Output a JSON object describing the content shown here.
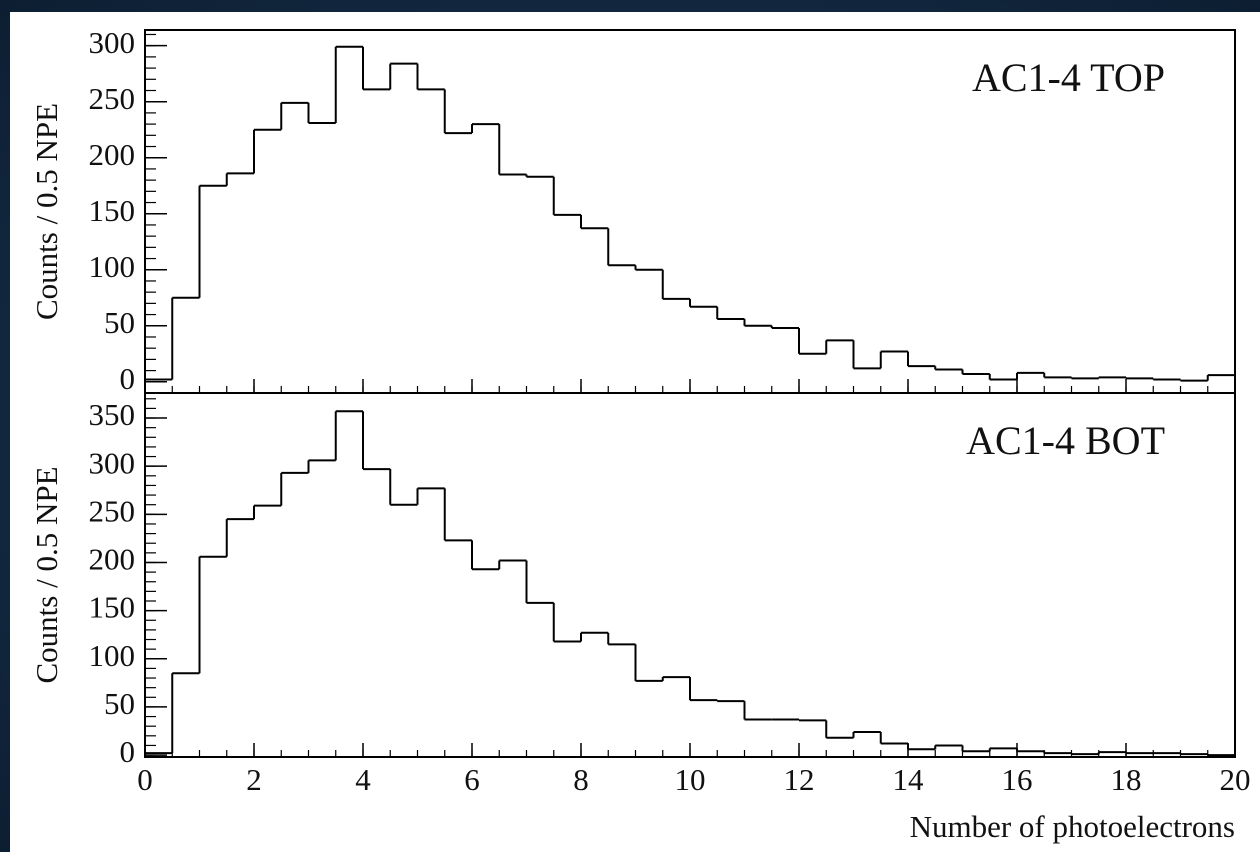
{
  "chart_data": [
    {
      "type": "histogram",
      "annotation": "AC1-4 TOP",
      "y_label": "Counts / 0.5 NPE",
      "color": "#000000",
      "bins": [
        0,
        0.5,
        1,
        1.5,
        2,
        2.5,
        3,
        3.5,
        4,
        4.5,
        5,
        5.5,
        6,
        6.5,
        7,
        7.5,
        8,
        8.5,
        9,
        9.5,
        10,
        10.5,
        11,
        11.5,
        12,
        12.5,
        13,
        13.5,
        14,
        14.5,
        15,
        15.5,
        16,
        16.5,
        17,
        17.5,
        18,
        18.5,
        19,
        19.5,
        20
      ],
      "values": [
        2,
        75,
        175,
        186,
        225,
        249,
        231,
        299,
        261,
        284,
        261,
        222,
        230,
        185,
        183,
        149,
        137,
        104,
        100,
        74,
        67,
        56,
        50,
        48,
        25,
        37,
        12,
        27,
        14,
        11,
        7,
        2,
        8,
        4,
        3,
        4,
        3,
        2,
        1,
        6
      ],
      "xlim": [
        0,
        20
      ],
      "ylim": [
        -10,
        314
      ],
      "yticks": [
        0,
        50,
        100,
        150,
        200,
        250,
        300
      ]
    },
    {
      "type": "histogram",
      "annotation": "AC1-4 BOT",
      "y_label": "Counts / 0.5 NPE",
      "x_label": "Number of photoelectrons",
      "color": "#000000",
      "bins": [
        0,
        0.5,
        1,
        1.5,
        2,
        2.5,
        3,
        3.5,
        4,
        4.5,
        5,
        5.5,
        6,
        6.5,
        7,
        7.5,
        8,
        8.5,
        9,
        9.5,
        10,
        10.5,
        11,
        11.5,
        12,
        12.5,
        13,
        13.5,
        14,
        14.5,
        15,
        15.5,
        16,
        16.5,
        17,
        17.5,
        18,
        18.5,
        19,
        19.5,
        20
      ],
      "values": [
        2,
        85,
        206,
        245,
        259,
        293,
        306,
        357,
        297,
        260,
        277,
        223,
        193,
        202,
        158,
        118,
        127,
        115,
        77,
        81,
        57,
        56,
        37,
        37,
        36,
        18,
        24,
        12,
        6,
        10,
        4,
        7,
        4,
        2,
        1,
        3,
        2,
        2,
        1,
        0
      ],
      "xlim": [
        0,
        20
      ],
      "ylim": [
        -2,
        376
      ],
      "yticks": [
        0,
        50,
        100,
        150,
        200,
        250,
        300,
        350
      ],
      "xticks": [
        0,
        2,
        4,
        6,
        8,
        10,
        12,
        14,
        16,
        18,
        20
      ]
    }
  ]
}
